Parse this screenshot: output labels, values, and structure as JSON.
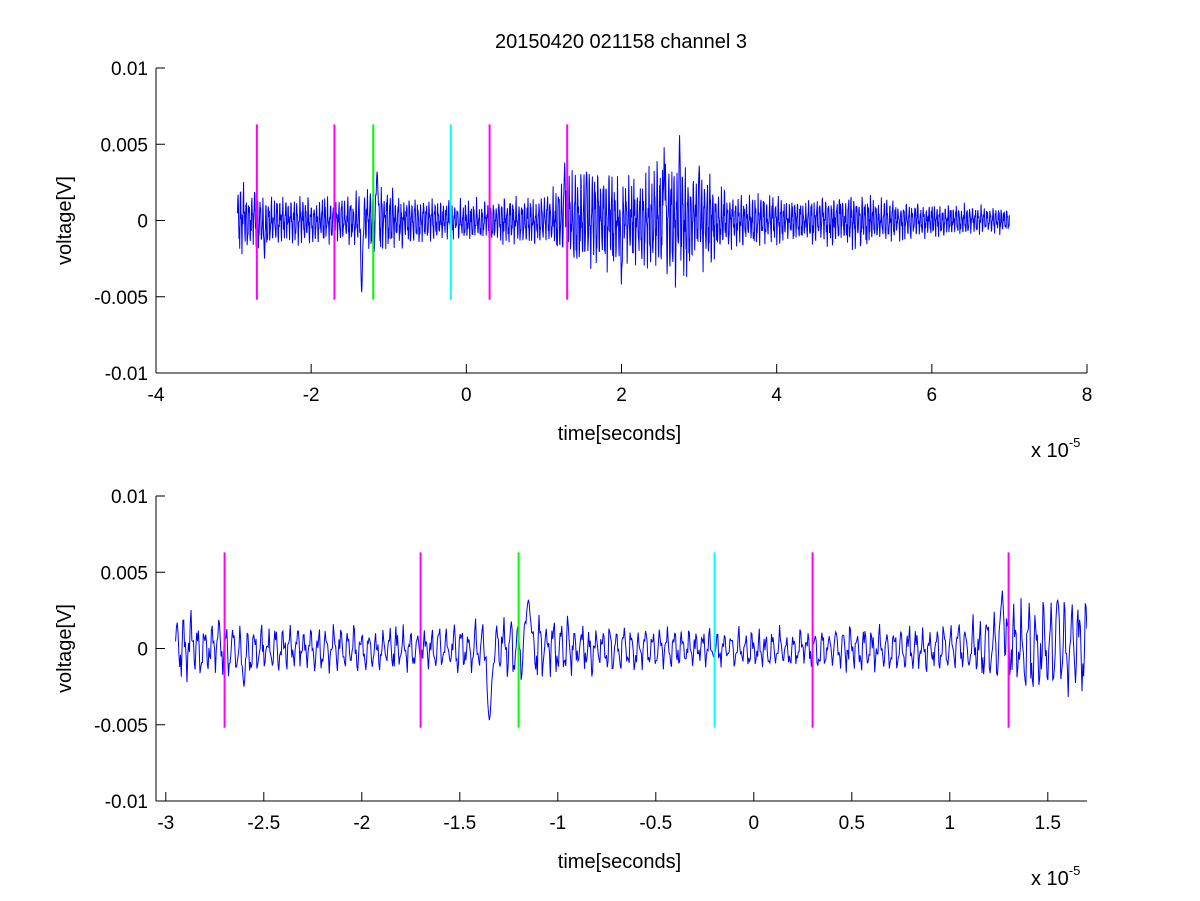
{
  "title": "20150420 021158 channel 3",
  "chart_data": [
    {
      "type": "line",
      "xlabel": "time[seconds]",
      "ylabel": "voltage[V]",
      "xlim": [
        -4e-05,
        8e-05
      ],
      "ylim": [
        -0.01,
        0.01
      ],
      "x_ticks": [
        -4e-05,
        -2e-05,
        0,
        2e-05,
        4e-05,
        6e-05,
        8e-05
      ],
      "x_tick_labels": [
        "-4",
        "-2",
        "0",
        "2",
        "4",
        "6",
        "8"
      ],
      "x_multiplier_label": {
        "base": "x 10",
        "exponent": "-5"
      },
      "y_ticks": [
        -0.01,
        -0.005,
        0,
        0.005,
        0.01
      ],
      "y_tick_labels": [
        "-0.01",
        "-0.005",
        "0",
        "0.005",
        "0.01"
      ],
      "grid": false,
      "series": [
        {
          "color": "#0000ff",
          "x_range": [
            -2.95e-05,
            7e-05
          ],
          "envelope": [
            [
              -2.95e-05,
              0.0025
            ],
            [
              -2.5e-05,
              0.0018
            ],
            [
              -2e-05,
              0.0016
            ],
            [
              -1.5e-05,
              0.0017
            ],
            [
              -1.2e-05,
              0.0025
            ],
            [
              -8e-06,
              0.0018
            ],
            [
              -4e-06,
              0.0015
            ],
            [
              0,
              0.0014
            ],
            [
              5e-06,
              0.0017
            ],
            [
              1e-05,
              0.0016
            ],
            [
              1.3e-05,
              0.0032
            ],
            [
              1.8e-05,
              0.0036
            ],
            [
              2.2e-05,
              0.0028
            ],
            [
              2.6e-05,
              0.0048
            ],
            [
              3e-05,
              0.0036
            ],
            [
              3.5e-05,
              0.0018
            ],
            [
              4e-05,
              0.0017
            ],
            [
              4.5e-05,
              0.0016
            ],
            [
              5e-05,
              0.002
            ],
            [
              5.5e-05,
              0.0015
            ],
            [
              6e-05,
              0.0012
            ],
            [
              6.5e-05,
              0.0011
            ],
            [
              7e-05,
              0.0009
            ]
          ],
          "extremes": [
            {
              "x": -1.35e-05,
              "y": -0.0047
            },
            {
              "x": -1.15e-05,
              "y": 0.0032
            },
            {
              "x": 2e-05,
              "y": -0.0042
            },
            {
              "x": 2.55e-05,
              "y": 0.0048
            },
            {
              "x": 2.75e-05,
              "y": 0.0056
            },
            {
              "x": 3e-05,
              "y": 0.0036
            }
          ]
        }
      ],
      "markers": [
        {
          "x": -2.7e-05,
          "color": "#ff00ff",
          "y_range": [
            -0.0052,
            0.0063
          ]
        },
        {
          "x": -1.7e-05,
          "color": "#ff00ff",
          "y_range": [
            -0.0052,
            0.0063
          ]
        },
        {
          "x": -1.2e-05,
          "color": "#00ff00",
          "y_range": [
            -0.0052,
            0.0063
          ]
        },
        {
          "x": -2e-06,
          "color": "#00ffff",
          "y_range": [
            -0.0052,
            0.0063
          ]
        },
        {
          "x": 3e-06,
          "color": "#ff00ff",
          "y_range": [
            -0.0052,
            0.0063
          ]
        },
        {
          "x": 1.3e-05,
          "color": "#ff00ff",
          "y_range": [
            -0.0052,
            0.0063
          ]
        }
      ]
    },
    {
      "type": "line",
      "xlabel": "time[seconds]",
      "ylabel": "voltage[V]",
      "xlim": [
        -3.05e-05,
        1.7e-05
      ],
      "ylim": [
        -0.01,
        0.01
      ],
      "x_ticks": [
        -3e-05,
        -2.5e-05,
        -2e-05,
        -1.5e-05,
        -1e-05,
        -5e-06,
        0,
        5e-06,
        1e-05,
        1.5e-05
      ],
      "x_tick_labels": [
        "-3",
        "-2.5",
        "-2",
        "-1.5",
        "-1",
        "-0.5",
        "0",
        "0.5",
        "1",
        "1.5"
      ],
      "x_multiplier_label": {
        "base": "x 10",
        "exponent": "-5"
      },
      "y_ticks": [
        -0.01,
        -0.005,
        0,
        0.005,
        0.01
      ],
      "y_tick_labels": [
        "-0.01",
        "-0.005",
        "0",
        "0.005",
        "0.01"
      ],
      "grid": false,
      "series": [
        {
          "color": "#0000ff",
          "x_range": [
            -2.95e-05,
            1.7e-05
          ],
          "envelope": [
            [
              -2.95e-05,
              0.0025
            ],
            [
              -2.5e-05,
              0.0018
            ],
            [
              -2e-05,
              0.0016
            ],
            [
              -1.5e-05,
              0.0017
            ],
            [
              -1.2e-05,
              0.0025
            ],
            [
              -8e-06,
              0.0018
            ],
            [
              -4e-06,
              0.0015
            ],
            [
              0,
              0.0014
            ],
            [
              5e-06,
              0.0017
            ],
            [
              1e-05,
              0.0016
            ],
            [
              1.3e-05,
              0.0032
            ],
            [
              1.7e-05,
              0.0036
            ]
          ],
          "extremes": [
            {
              "x": -1.35e-05,
              "y": -0.0047
            },
            {
              "x": -1.15e-05,
              "y": 0.0032
            },
            {
              "x": -2.6e-05,
              "y": -0.0025
            },
            {
              "x": 1.27e-05,
              "y": 0.0038
            },
            {
              "x": 1.55e-05,
              "y": 0.0032
            }
          ]
        }
      ],
      "markers": [
        {
          "x": -2.7e-05,
          "color": "#ff00ff",
          "y_range": [
            -0.0052,
            0.0063
          ]
        },
        {
          "x": -1.7e-05,
          "color": "#ff00ff",
          "y_range": [
            -0.0052,
            0.0063
          ]
        },
        {
          "x": -1.2e-05,
          "color": "#00ff00",
          "y_range": [
            -0.0052,
            0.0063
          ]
        },
        {
          "x": -2e-06,
          "color": "#00ffff",
          "y_range": [
            -0.0052,
            0.0063
          ]
        },
        {
          "x": 3e-06,
          "color": "#ff00ff",
          "y_range": [
            -0.0052,
            0.0063
          ]
        },
        {
          "x": 1.3e-05,
          "color": "#ff00ff",
          "y_range": [
            -0.0052,
            0.0063
          ]
        }
      ]
    }
  ]
}
